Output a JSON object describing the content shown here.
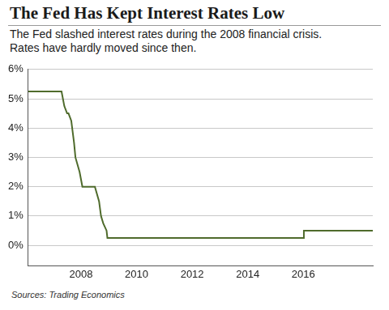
{
  "chart_data": {
    "type": "line",
    "title": "The Fed Has Kept Interest Rates Low",
    "subtitle": [
      "The Fed slashed interest rates during the 2008 financial crisis.",
      "Rates have hardly moved since then."
    ],
    "source": "Sources: Trading Economics",
    "x": [
      2006.1,
      2007.3,
      2007.4,
      2007.5,
      2007.55,
      2007.65,
      2007.75,
      2007.8,
      2007.95,
      2008.05,
      2008.1,
      2008.5,
      2008.65,
      2008.72,
      2008.8,
      2008.92,
      2008.95,
      2016.0,
      2016.02,
      2018.5
    ],
    "values": [
      5.25,
      5.25,
      4.75,
      4.5,
      4.5,
      4.25,
      3.5,
      3.0,
      2.5,
      2.0,
      2.0,
      2.0,
      1.5,
      1.0,
      0.75,
      0.5,
      0.25,
      0.25,
      0.5,
      0.5
    ],
    "color": "#4f6b2c",
    "xlim": [
      2006.1,
      2018.5
    ],
    "xticks": [
      2008,
      2010,
      2012,
      2014,
      2016
    ],
    "ylim": [
      -0.7,
      6
    ],
    "yticks": [
      {
        "value": 0,
        "label": "0%"
      },
      {
        "value": 1,
        "label": "1%"
      },
      {
        "value": 2,
        "label": "2%"
      },
      {
        "value": 3,
        "label": "3%"
      },
      {
        "value": 4,
        "label": "4%"
      },
      {
        "value": 5,
        "label": "5%"
      },
      {
        "value": 6,
        "label": "6%"
      }
    ],
    "grid": "y"
  }
}
